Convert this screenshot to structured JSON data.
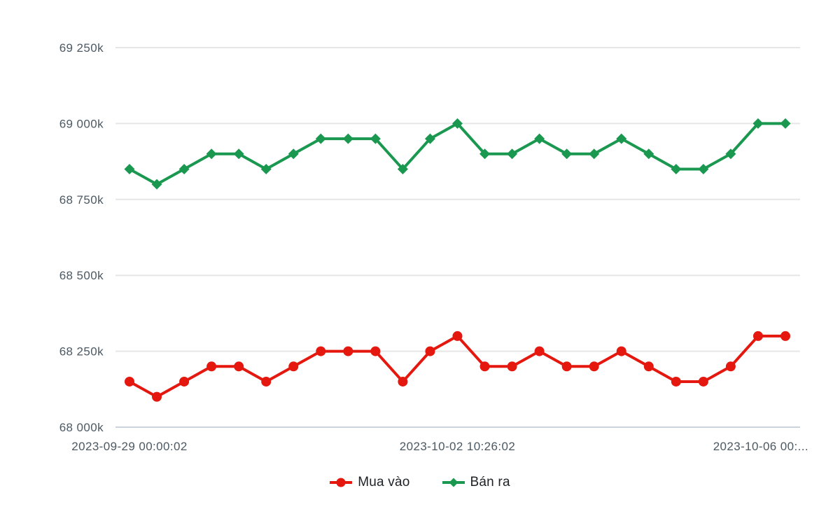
{
  "chart_data": {
    "type": "line",
    "title": "",
    "xlabel": "",
    "ylabel": "",
    "grid": "horizontal",
    "background_color": "#ffffff",
    "gridline_color": "#e6e6e6",
    "axis_line_color": "#c9d4de",
    "tick_text_color": "#4c5963",
    "ylim": [
      68000,
      69250
    ],
    "y_ticks": {
      "values": [
        69250,
        69000,
        68750,
        68500,
        68250,
        68000
      ],
      "labels": [
        "69 250k",
        "69 000k",
        "68 750k",
        "68 500k",
        "68 250k",
        "68 000k"
      ]
    },
    "x_ticks": {
      "indices": [
        0,
        12,
        24
      ],
      "labels": [
        "2023-09-29 00:00:02",
        "2023-10-02 10:26:02",
        "2023-10-06 00:..."
      ]
    },
    "legend_position": "bottom-center",
    "series": [
      {
        "name": "Mua vào",
        "color": "#e5180f",
        "marker": "circle",
        "values": [
          68150,
          68100,
          68150,
          68200,
          68200,
          68150,
          68200,
          68250,
          68250,
          68250,
          68150,
          68250,
          68300,
          68200,
          68200,
          68250,
          68200,
          68200,
          68250,
          68200,
          68150,
          68150,
          68200,
          68300,
          68300
        ]
      },
      {
        "name": "Bán ra",
        "color": "#1a9850",
        "marker": "diamond",
        "values": [
          68850,
          68800,
          68850,
          68900,
          68900,
          68850,
          68900,
          68950,
          68950,
          68950,
          68850,
          68950,
          69000,
          68900,
          68900,
          68950,
          68900,
          68900,
          68950,
          68900,
          68850,
          68850,
          68900,
          69000,
          69000
        ]
      }
    ]
  }
}
